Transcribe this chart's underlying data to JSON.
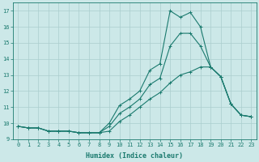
{
  "xlabel": "Humidex (Indice chaleur)",
  "x": [
    0,
    1,
    2,
    3,
    4,
    5,
    6,
    7,
    8,
    9,
    10,
    11,
    12,
    13,
    14,
    15,
    16,
    17,
    18,
    19,
    20,
    21,
    22,
    23
  ],
  "line_max": [
    9.8,
    9.7,
    9.7,
    9.5,
    9.5,
    9.5,
    9.4,
    9.4,
    9.4,
    10.0,
    11.1,
    11.5,
    12.0,
    13.3,
    13.7,
    17.0,
    16.6,
    16.9,
    16.0,
    13.5,
    12.9,
    11.2,
    10.5,
    10.4
  ],
  "line_min": [
    9.8,
    9.7,
    9.7,
    9.5,
    9.5,
    9.5,
    9.4,
    9.4,
    9.4,
    9.5,
    10.1,
    10.5,
    11.0,
    11.5,
    11.9,
    12.5,
    13.0,
    13.2,
    13.5,
    13.5,
    12.9,
    11.2,
    10.5,
    10.4
  ],
  "line_mid": [
    9.8,
    9.7,
    9.7,
    9.5,
    9.5,
    9.5,
    9.4,
    9.4,
    9.4,
    9.8,
    10.6,
    11.0,
    11.5,
    12.4,
    12.8,
    14.8,
    15.6,
    15.6,
    14.8,
    13.5,
    12.9,
    11.2,
    10.5,
    10.4
  ],
  "color": "#1a7a6e",
  "bg_color": "#cce8e8",
  "grid_color": "#aacece",
  "ylim": [
    9.0,
    17.5
  ],
  "xlim": [
    -0.5,
    23.5
  ],
  "yticks": [
    9,
    10,
    11,
    12,
    13,
    14,
    15,
    16,
    17
  ],
  "xticks": [
    0,
    1,
    2,
    3,
    4,
    5,
    6,
    7,
    8,
    9,
    10,
    11,
    12,
    13,
    14,
    15,
    16,
    17,
    18,
    19,
    20,
    21,
    22,
    23
  ],
  "marker": "+",
  "markersize": 3,
  "linewidth": 0.8,
  "tick_fontsize": 5.0,
  "xlabel_fontsize": 6.0
}
